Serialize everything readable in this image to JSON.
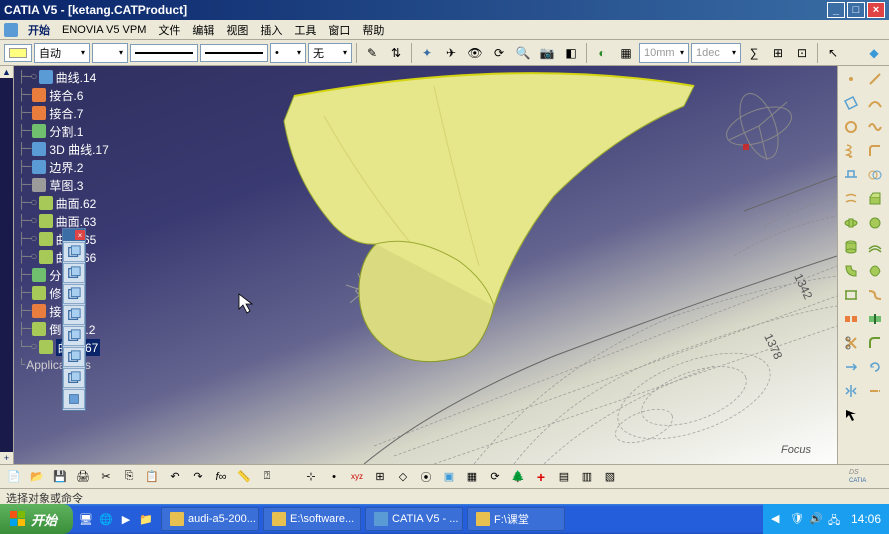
{
  "title": "CATIA V5 - [ketang.CATProduct]",
  "menu": {
    "start": "开始",
    "items": [
      "ENOVIA V5 VPM",
      "文件",
      "编辑",
      "视图",
      "插入",
      "工具",
      "窗口",
      "帮助"
    ]
  },
  "toolbar": {
    "auto": "自动",
    "none": "无",
    "dim": "10mm",
    "decs": "1dec"
  },
  "tree": [
    {
      "icon": "curve",
      "label": "曲线.14",
      "branch": "├─○"
    },
    {
      "icon": "join",
      "label": "接合.6",
      "branch": "├─"
    },
    {
      "icon": "join",
      "label": "接合.7",
      "branch": "├─"
    },
    {
      "icon": "split",
      "label": "分割.1",
      "branch": "├─"
    },
    {
      "icon": "curve",
      "label": "3D 曲线.17",
      "branch": "├─"
    },
    {
      "icon": "curve",
      "label": "边界.2",
      "branch": "├─"
    },
    {
      "icon": "sketch",
      "label": "草图.3",
      "branch": "├─"
    },
    {
      "icon": "surf",
      "label": "曲面.62",
      "branch": "├─○"
    },
    {
      "icon": "surf",
      "label": "曲面.63",
      "branch": "├─○"
    },
    {
      "icon": "surf",
      "label": "曲面.65",
      "branch": "├─○"
    },
    {
      "icon": "surf",
      "label": "曲面.66",
      "branch": "├─○"
    },
    {
      "icon": "split",
      "label": "分割.2",
      "branch": "├─"
    },
    {
      "icon": "surf",
      "label": "修剪.1",
      "branch": "├─"
    },
    {
      "icon": "join",
      "label": "接合.8",
      "branch": "├─"
    },
    {
      "icon": "surf",
      "label": "倒圆角.2",
      "branch": "├─"
    },
    {
      "icon": "surf",
      "label": "曲面.67",
      "branch": "└─○",
      "sel": true
    }
  ],
  "applications": "Applications",
  "focus": "Focus",
  "status": "选择对象或命令",
  "taskbar": {
    "start": "开始",
    "tasks": [
      "audi-a5-200...",
      "E:\\software...",
      "CATIA V5 - ...",
      "F:\\课堂"
    ],
    "clock": "14:06"
  },
  "colors": {
    "titlebar_a": "#0a246a",
    "titlebar_b": "#3a6ea5",
    "chrome": "#ece9d8",
    "viewport_top": "#39396e",
    "surface_fill": "#e8e890",
    "surface_stroke": "#9aaa30",
    "car_line": "#666666"
  },
  "drawing_dims": [
    "1342",
    "1378"
  ]
}
